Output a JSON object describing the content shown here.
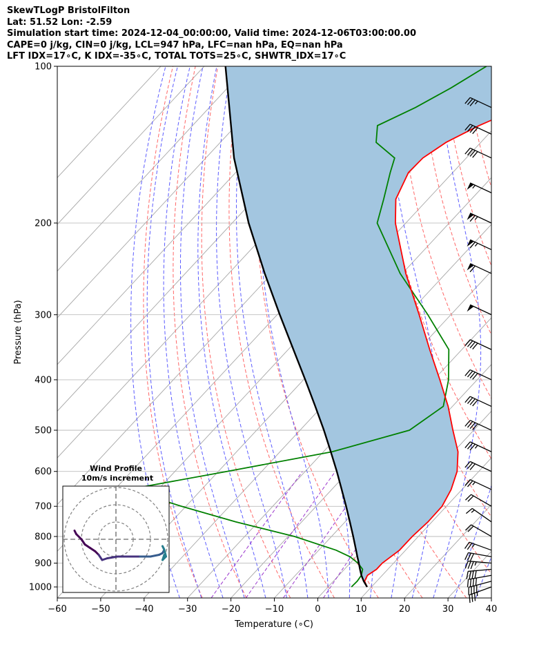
{
  "header": {
    "line1": "SkewTLogP BristolFilton",
    "line2": "Lat: 51.52   Lon: -2.59",
    "line3": "Simulation start time: 2024-12-04_00:00:00, Valid time: 2024-12-06T03:00:00.00",
    "line4": "CAPE=0 j/kg, CIN=0 j/kg, LCL=947 hPa, LFC=nan hPa, EQ=nan hPa",
    "line5": "LFT IDX=17∘C, K IDX=-35∘C, TOTAL TOTS=25∘C, SHWTR_IDX=17∘C"
  },
  "chart_data": {
    "type": "line",
    "xlabel": "Temperature (∘C)",
    "ylabel": "Pressure (hPa)",
    "xlim": [
      -60,
      40
    ],
    "ylim": [
      1050,
      100
    ],
    "y_scale": "log",
    "x_ticks": [
      -60,
      -50,
      -40,
      -30,
      -20,
      -10,
      0,
      10,
      20,
      30,
      40
    ],
    "x_tick_labels": [
      "−60",
      "−50",
      "−40",
      "−30",
      "−20",
      "−10",
      "0",
      "10",
      "20",
      "30",
      "40"
    ],
    "y_ticks": [
      1000,
      900,
      800,
      700,
      600,
      500,
      400,
      300,
      200,
      100
    ],
    "y_tick_labels": [
      "1000",
      "900",
      "800",
      "700",
      "600",
      "500",
      "400",
      "300",
      "200",
      "100"
    ],
    "grid": true,
    "temperature": {
      "color": "#ff0000",
      "pressure": [
        1000,
        975,
        950,
        925,
        900,
        875,
        850,
        800,
        750,
        700,
        650,
        600,
        550,
        500,
        450,
        400,
        350,
        300,
        250,
        200,
        180,
        160,
        150,
        140,
        130,
        120,
        110,
        100
      ],
      "values": [
        9,
        7.2,
        6.6,
        7.4,
        7.4,
        8.0,
        8.6,
        8.6,
        9.1,
        9.0,
        7.5,
        5.0,
        1.0,
        -4.8,
        -11.0,
        -18.6,
        -27.4,
        -37.3,
        -49.2,
        -62.4,
        -67.4,
        -70.2,
        -70.0,
        -68.0,
        -64.0,
        -58.3,
        -55.0,
        -50.0
      ]
    },
    "dewpoint": {
      "color": "#008000",
      "pressure": [
        1000,
        975,
        950,
        925,
        900,
        875,
        850,
        800,
        750,
        700,
        650,
        600,
        550,
        500,
        450,
        400,
        350,
        300,
        250,
        200,
        180,
        160,
        150,
        140,
        130,
        120,
        110,
        100
      ],
      "values": [
        5.4,
        5.5,
        5.2,
        4.2,
        1.8,
        -1.4,
        -6.0,
        -18.5,
        -35.2,
        -51.0,
        -67.0,
        -48.0,
        -28.0,
        -14.8,
        -12.1,
        -16.6,
        -23.0,
        -35.3,
        -50.5,
        -66.6,
        -70.2,
        -74.4,
        -76.5,
        -84.1,
        -87.4,
        -82.5,
        -78.5,
        -75.0
      ]
    },
    "parcel": {
      "color": "#000000",
      "pressure": [
        1000,
        975,
        950,
        925,
        900,
        875,
        850,
        800,
        750,
        700,
        650,
        600,
        550,
        500,
        450,
        400,
        350,
        300,
        250,
        200,
        150,
        100
      ],
      "values": [
        9.0,
        7.0,
        5.2,
        3.6,
        2.0,
        0.3,
        -1.4,
        -5.0,
        -8.9,
        -13.1,
        -17.7,
        -22.7,
        -28.3,
        -34.5,
        -41.6,
        -49.6,
        -58.8,
        -69.4,
        -81.7,
        -96.2,
        -113.5,
        -135.1
      ]
    },
    "cin_fill_color": "#a3c6e0",
    "reference_lines": {
      "isotherms_color": "#a6a6a6",
      "dry_adiabats_color": "#ff6666",
      "moist_adiabats_color": "#5a5aff",
      "mixing_ratio_color": "#9933cc"
    },
    "wind_barbs": [
      {
        "p": 1000,
        "dir": 250,
        "speed_kt": 35
      },
      {
        "p": 975,
        "dir": 255,
        "speed_kt": 40
      },
      {
        "p": 950,
        "dir": 260,
        "speed_kt": 40
      },
      {
        "p": 925,
        "dir": 265,
        "speed_kt": 40
      },
      {
        "p": 900,
        "dir": 275,
        "speed_kt": 35
      },
      {
        "p": 875,
        "dir": 280,
        "speed_kt": 30
      },
      {
        "p": 850,
        "dir": 290,
        "speed_kt": 25
      },
      {
        "p": 800,
        "dir": 300,
        "speed_kt": 20
      },
      {
        "p": 750,
        "dir": 305,
        "speed_kt": 15
      },
      {
        "p": 700,
        "dir": 300,
        "speed_kt": 20
      },
      {
        "p": 650,
        "dir": 295,
        "speed_kt": 25
      },
      {
        "p": 600,
        "dir": 295,
        "speed_kt": 30
      },
      {
        "p": 550,
        "dir": 295,
        "speed_kt": 35
      },
      {
        "p": 500,
        "dir": 295,
        "speed_kt": 40
      },
      {
        "p": 450,
        "dir": 295,
        "speed_kt": 40
      },
      {
        "p": 400,
        "dir": 295,
        "speed_kt": 40
      },
      {
        "p": 350,
        "dir": 295,
        "speed_kt": 40
      },
      {
        "p": 300,
        "dir": 295,
        "speed_kt": 50
      },
      {
        "p": 250,
        "dir": 295,
        "speed_kt": 60
      },
      {
        "p": 225,
        "dir": 295,
        "speed_kt": 65
      },
      {
        "p": 200,
        "dir": 295,
        "speed_kt": 65
      },
      {
        "p": 175,
        "dir": 295,
        "speed_kt": 55
      },
      {
        "p": 150,
        "dir": 295,
        "speed_kt": 40
      },
      {
        "p": 135,
        "dir": 295,
        "speed_kt": 40
      },
      {
        "p": 120,
        "dir": 295,
        "speed_kt": 35
      }
    ],
    "hodograph": {
      "title_line1": "Wind Profile",
      "title_line2": "10m/s increment",
      "rings_ms": [
        10,
        20,
        30
      ],
      "u": [
        -24,
        -23,
        -20,
        -18,
        -15,
        -12,
        -10,
        -8,
        -5,
        1,
        7,
        14,
        20,
        25,
        27,
        28,
        27,
        28,
        29,
        28,
        27,
        28
      ],
      "v": [
        5,
        3,
        0,
        -3,
        -5,
        -7,
        -9,
        -12,
        -11,
        -10,
        -10,
        -10,
        -10,
        -9,
        -8,
        -6,
        -4,
        -6,
        -10,
        -11,
        -12,
        -9
      ]
    }
  }
}
